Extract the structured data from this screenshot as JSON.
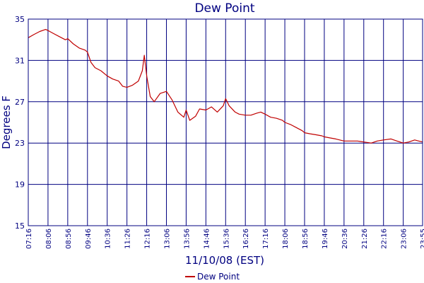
{
  "chart_data": {
    "type": "line",
    "title": "Dew Point",
    "xlabel": "11/10/08 (EST)",
    "ylabel": "Degrees F",
    "ylim": [
      15,
      35
    ],
    "yticks": [
      15,
      19,
      23,
      27,
      31,
      35
    ],
    "xlim": [
      "07:16",
      "23:55"
    ],
    "xticks": [
      "07:16",
      "08:06",
      "08:56",
      "09:46",
      "10:36",
      "11:26",
      "12:16",
      "13:06",
      "13:56",
      "14:46",
      "15:36",
      "16:26",
      "17:16",
      "18:06",
      "18:56",
      "19:46",
      "20:36",
      "21:26",
      "22:16",
      "23:06",
      "23:55"
    ],
    "grid": true,
    "legend_position": "bottom-center",
    "colors": {
      "series": "#c00000",
      "grid": "#000080",
      "text": "#000080"
    },
    "series": [
      {
        "name": "Dew Point",
        "points": [
          [
            "07:16",
            33.2
          ],
          [
            "07:30",
            33.5
          ],
          [
            "07:45",
            33.8
          ],
          [
            "08:00",
            34.0
          ],
          [
            "08:06",
            33.9
          ],
          [
            "08:20",
            33.6
          ],
          [
            "08:35",
            33.3
          ],
          [
            "08:50",
            33.0
          ],
          [
            "08:56",
            33.1
          ],
          [
            "09:10",
            32.6
          ],
          [
            "09:25",
            32.2
          ],
          [
            "09:40",
            32.0
          ],
          [
            "09:46",
            31.8
          ],
          [
            "09:55",
            30.8
          ],
          [
            "10:05",
            30.3
          ],
          [
            "10:20",
            30.0
          ],
          [
            "10:36",
            29.5
          ],
          [
            "10:50",
            29.2
          ],
          [
            "11:05",
            29.0
          ],
          [
            "11:15",
            28.5
          ],
          [
            "11:26",
            28.4
          ],
          [
            "11:40",
            28.6
          ],
          [
            "11:55",
            29.0
          ],
          [
            "12:05",
            30.0
          ],
          [
            "12:10",
            31.5
          ],
          [
            "12:16",
            29.5
          ],
          [
            "12:25",
            27.5
          ],
          [
            "12:35",
            27.0
          ],
          [
            "12:50",
            27.8
          ],
          [
            "13:06",
            28.0
          ],
          [
            "13:20",
            27.2
          ],
          [
            "13:35",
            26.0
          ],
          [
            "13:50",
            25.5
          ],
          [
            "13:56",
            26.2
          ],
          [
            "14:05",
            25.2
          ],
          [
            "14:20",
            25.6
          ],
          [
            "14:30",
            26.3
          ],
          [
            "14:46",
            26.2
          ],
          [
            "15:00",
            26.5
          ],
          [
            "15:15",
            26.0
          ],
          [
            "15:30",
            26.6
          ],
          [
            "15:36",
            27.3
          ],
          [
            "15:45",
            26.6
          ],
          [
            "16:00",
            26.0
          ],
          [
            "16:10",
            25.8
          ],
          [
            "16:26",
            25.7
          ],
          [
            "16:40",
            25.7
          ],
          [
            "16:55",
            25.9
          ],
          [
            "17:05",
            26.0
          ],
          [
            "17:16",
            25.8
          ],
          [
            "17:30",
            25.5
          ],
          [
            "17:45",
            25.4
          ],
          [
            "18:00",
            25.2
          ],
          [
            "18:06",
            25.0
          ],
          [
            "18:20",
            24.8
          ],
          [
            "18:35",
            24.5
          ],
          [
            "18:50",
            24.2
          ],
          [
            "18:56",
            24.0
          ],
          [
            "19:10",
            23.9
          ],
          [
            "19:25",
            23.8
          ],
          [
            "19:40",
            23.7
          ],
          [
            "19:46",
            23.6
          ],
          [
            "20:00",
            23.5
          ],
          [
            "20:15",
            23.4
          ],
          [
            "20:36",
            23.2
          ],
          [
            "20:50",
            23.2
          ],
          [
            "21:10",
            23.2
          ],
          [
            "21:26",
            23.1
          ],
          [
            "21:45",
            23.0
          ],
          [
            "22:00",
            23.2
          ],
          [
            "22:16",
            23.3
          ],
          [
            "22:35",
            23.4
          ],
          [
            "22:50",
            23.2
          ],
          [
            "23:06",
            23.0
          ],
          [
            "23:20",
            23.1
          ],
          [
            "23:35",
            23.3
          ],
          [
            "23:45",
            23.2
          ],
          [
            "23:55",
            23.1
          ]
        ]
      }
    ]
  }
}
